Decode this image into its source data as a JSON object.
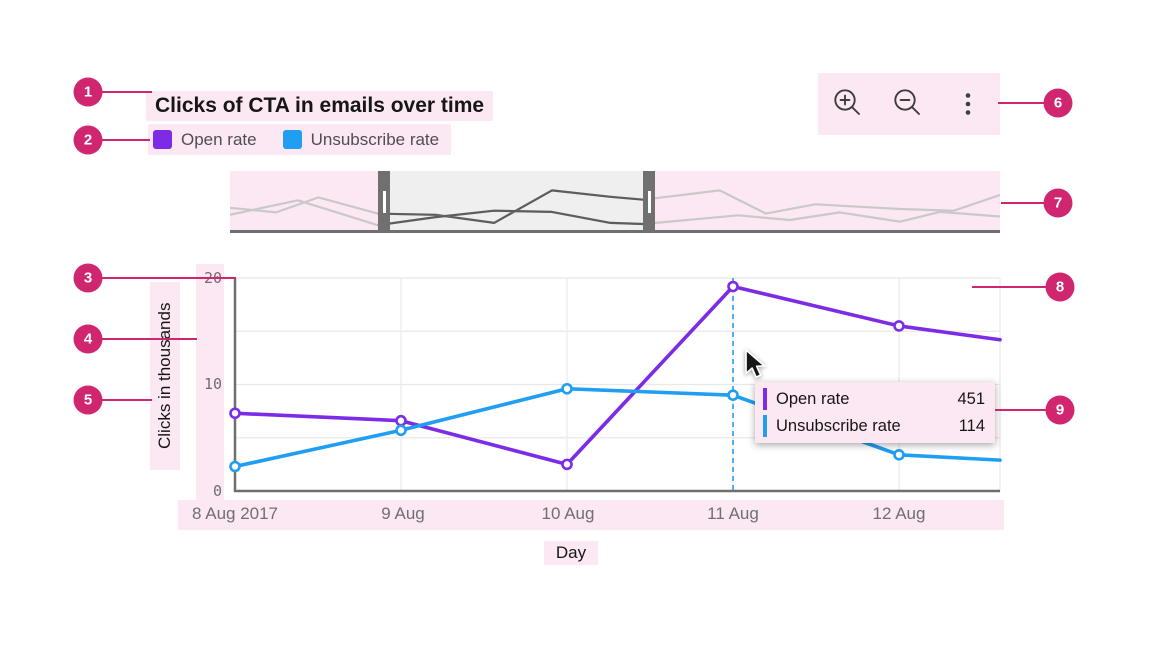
{
  "annotations": {
    "badges": [
      "1",
      "2",
      "3",
      "4",
      "5",
      "6",
      "7",
      "8",
      "9"
    ],
    "accent_color": "#d02670",
    "highlight_color": "#fce8f2"
  },
  "header": {
    "title": "Clicks of CTA in emails over time"
  },
  "legend": {
    "items": [
      {
        "label": "Open rate",
        "color": "#7d2ce5"
      },
      {
        "label": "Unsubscribe rate",
        "color": "#1f9ef2"
      }
    ]
  },
  "toolbar": {
    "buttons": [
      {
        "name": "zoom-in"
      },
      {
        "name": "zoom-out"
      },
      {
        "name": "overflow-menu"
      }
    ]
  },
  "chart_data": {
    "type": "line",
    "title": "Clicks of CTA in emails over time",
    "xlabel": "Day",
    "ylabel": "Clicks in thousands",
    "x_tick_labels": [
      "8 Aug 2017",
      "9 Aug",
      "10 Aug",
      "11 Aug",
      "12 Aug"
    ],
    "y_tick_labels": [
      "0",
      "10",
      "20"
    ],
    "ylim": [
      0,
      20
    ],
    "y_grid_step": 5,
    "grid": true,
    "legend_position": "top-left",
    "series": [
      {
        "name": "Open rate",
        "color": "#7d2ce5",
        "values": [
          7.3,
          6.6,
          2.5,
          19.2,
          15.5
        ],
        "edge_value": 14.2
      },
      {
        "name": "Unsubscribe rate",
        "color": "#1f9ef2",
        "values": [
          2.3,
          5.7,
          9.6,
          9.0,
          3.4
        ],
        "edge_value": 2.9
      }
    ],
    "ruler_x": "11 Aug",
    "zoombar": {
      "brush": [
        0.192,
        0.552
      ],
      "preview": [
        [
          [
            0,
            0.6
          ],
          [
            0.06,
            0.68
          ],
          [
            0.115,
            0.42
          ],
          [
            0.192,
            0.7
          ],
          [
            0.267,
            0.72
          ],
          [
            0.343,
            0.86
          ],
          [
            0.418,
            0.3
          ],
          [
            0.494,
            0.41
          ],
          [
            0.537,
            0.46
          ],
          [
            0.636,
            0.3
          ],
          [
            0.696,
            0.7
          ],
          [
            0.76,
            0.54
          ],
          [
            0.87,
            0.62
          ],
          [
            0.94,
            0.65
          ],
          [
            1,
            0.38
          ]
        ],
        [
          [
            0,
            0.72
          ],
          [
            0.088,
            0.47
          ],
          [
            0.192,
            0.9
          ],
          [
            0.267,
            0.76
          ],
          [
            0.343,
            0.65
          ],
          [
            0.418,
            0.67
          ],
          [
            0.494,
            0.86
          ],
          [
            0.537,
            0.88
          ],
          [
            0.66,
            0.73
          ],
          [
            0.727,
            0.81
          ],
          [
            0.792,
            0.68
          ],
          [
            0.87,
            0.84
          ],
          [
            0.922,
            0.67
          ],
          [
            1,
            0.75
          ]
        ]
      ]
    }
  },
  "tooltip": {
    "rows": [
      {
        "label": "Open rate",
        "value": "451",
        "color": "#7d2ce5"
      },
      {
        "label": "Unsubscribe rate",
        "value": "114",
        "color": "#1f9ef2"
      }
    ]
  }
}
